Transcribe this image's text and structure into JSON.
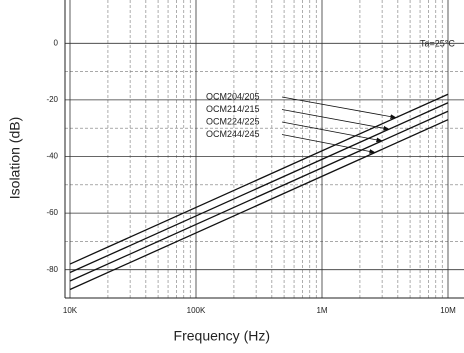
{
  "chart_data": {
    "type": "line",
    "xlabel": "Frequency (Hz)",
    "ylabel": "Isolation (dB)",
    "annotation": "Ta=25°C",
    "xscale": "log",
    "xlim": [
      10000,
      10000000
    ],
    "xticks": [
      {
        "value": 10000,
        "label": "10K"
      },
      {
        "value": 100000,
        "label": "100K"
      },
      {
        "value": 1000000,
        "label": "1M"
      },
      {
        "value": 10000000,
        "label": "10M"
      }
    ],
    "ylim": [
      -90,
      10
    ],
    "yticks": [
      0,
      -20,
      -40,
      -60,
      -80
    ],
    "grid": true,
    "series": [
      {
        "name": "OCM204/205",
        "color": "#111111",
        "x": [
          10000,
          10000000
        ],
        "values": [
          -78,
          -18
        ]
      },
      {
        "name": "OCM214/215",
        "color": "#111111",
        "x": [
          10000,
          10000000
        ],
        "values": [
          -81,
          -21
        ]
      },
      {
        "name": "OCM224/225",
        "color": "#111111",
        "x": [
          10000,
          10000000
        ],
        "values": [
          -84,
          -24
        ]
      },
      {
        "name": "OCM244/245",
        "color": "#111111",
        "x": [
          10000,
          10000000
        ],
        "values": [
          -87,
          -27
        ]
      }
    ]
  }
}
